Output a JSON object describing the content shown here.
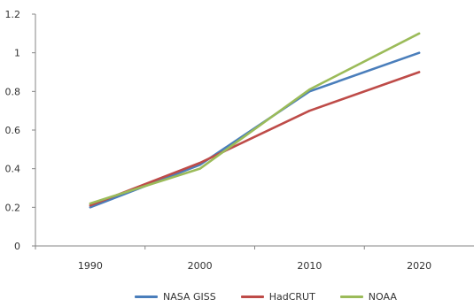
{
  "chart_data": {
    "type": "line",
    "categories": [
      "1990",
      "2000",
      "2010",
      "2020"
    ],
    "series": [
      {
        "name": "NASA GISS",
        "values": [
          0.2,
          0.42,
          0.8,
          1.0
        ],
        "color": "#4a7ebb"
      },
      {
        "name": "HadCRUT",
        "values": [
          0.21,
          0.43,
          0.7,
          0.9
        ],
        "color": "#be4b48"
      },
      {
        "name": "NOAA",
        "values": [
          0.22,
          0.4,
          0.81,
          1.1
        ],
        "color": "#9bbb59"
      }
    ],
    "yticks": [
      "0",
      "0.2",
      "0.4",
      "0.6",
      "0.8",
      "1",
      "1.2"
    ],
    "ylim": [
      0,
      1.2
    ],
    "grid": false,
    "legend_position": "bottom",
    "title": "",
    "xlabel": "",
    "ylabel": ""
  }
}
